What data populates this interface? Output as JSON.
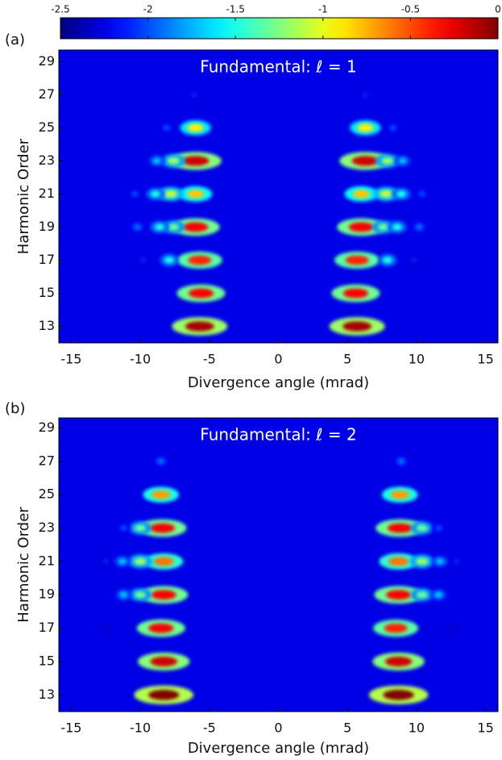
{
  "chart_data": [
    {
      "type": "heatmap",
      "panel": "(a)",
      "title": "Fundamental:  ℓ = 1",
      "xlabel": "Divergence angle (mrad)",
      "ylabel": "Harmonic Order",
      "colorbar": {
        "clim": [
          -2.5,
          0
        ],
        "ticks": [
          -2.5,
          -2,
          -1.5,
          -1,
          -0.5,
          0
        ]
      },
      "xlim": [
        -15.9,
        15.9
      ],
      "xticks": [
        -15,
        -10,
        -5,
        0,
        5,
        10,
        15
      ],
      "ylim": [
        12,
        29.7
      ],
      "yticks": [
        13,
        15,
        17,
        19,
        21,
        23,
        25,
        27,
        29
      ],
      "x": [
        -5.7,
        5.7,
        -5.6,
        5.6,
        -5.7,
        -7.9,
        -9.8,
        5.7,
        7.9,
        9.8,
        -6,
        -7.6,
        -8.6,
        -10.2,
        6,
        7.6,
        8.6,
        10.2,
        -6,
        -7.8,
        -8.9,
        -10.4,
        6,
        7.8,
        8.9,
        10.4,
        -6,
        -7.6,
        -8.8,
        6.3,
        7.9,
        9,
        -6,
        -8.1,
        6.3,
        8.3,
        -6.1,
        6.3
      ],
      "y": [
        13,
        13,
        15,
        15,
        17,
        17,
        17,
        17,
        17,
        17,
        19,
        19,
        19,
        19,
        19,
        19,
        19,
        19,
        21,
        21,
        21,
        21,
        21,
        21,
        21,
        21,
        23,
        23,
        23,
        23,
        23,
        23,
        25,
        25,
        25,
        25,
        27,
        27
      ],
      "values": [
        -0.1,
        -0.1,
        -0.3,
        -0.3,
        -0.4,
        -1.5,
        -2.1,
        -0.4,
        -1.5,
        -2.1,
        -0.3,
        -1.3,
        -1.5,
        -1.9,
        -0.3,
        -1.3,
        -1.5,
        -1.9,
        -0.8,
        -1.1,
        -1.5,
        -2,
        -0.8,
        -1.1,
        -1.5,
        -2,
        -0.2,
        -1.2,
        -1.7,
        -0.2,
        -1.2,
        -1.7,
        -0.9,
        -2,
        -0.9,
        -2,
        -2.1,
        -2.1
      ]
    },
    {
      "type": "heatmap",
      "panel": "(b)",
      "title": "Fundamental:  ℓ = 2",
      "xlabel": "Divergence angle (mrad)",
      "ylabel": "Harmonic Order",
      "xlim": [
        -15.9,
        15.9
      ],
      "xticks": [
        -15,
        -10,
        -5,
        0,
        5,
        10,
        15
      ],
      "ylim": [
        12,
        29.6
      ],
      "yticks": [
        13,
        15,
        17,
        19,
        21,
        23,
        25,
        27,
        29
      ],
      "x": [
        -8.3,
        8.7,
        -8.3,
        8.7,
        -8.5,
        8.5,
        -12.5,
        12.6,
        -8.3,
        -10,
        -11.2,
        8.7,
        10.4,
        11.6,
        -8.3,
        -10,
        -11.3,
        -12.5,
        8.7,
        10.4,
        11.7,
        12.9,
        -8.4,
        -10,
        -11.2,
        8.8,
        10.4,
        11.6,
        -8.5,
        8.8,
        -8.5,
        8.9
      ],
      "y": [
        13,
        13,
        15,
        15,
        17,
        17,
        17,
        17,
        19,
        19,
        19,
        19,
        19,
        19,
        21,
        21,
        21,
        21,
        21,
        21,
        21,
        21,
        23,
        23,
        23,
        23,
        23,
        23,
        25,
        25,
        27,
        27
      ],
      "values": [
        0,
        0,
        -0.2,
        -0.2,
        -0.3,
        -0.4,
        -2.2,
        -2.2,
        -0.3,
        -1.3,
        -1.7,
        -0.3,
        -1.3,
        -1.7,
        -0.6,
        -1.2,
        -1.7,
        -2.1,
        -0.6,
        -1.2,
        -1.7,
        -2.1,
        -0.3,
        -1.3,
        -2,
        -0.3,
        -1.3,
        -2,
        -0.7,
        -0.7,
        -1.9,
        -1.9
      ]
    }
  ]
}
